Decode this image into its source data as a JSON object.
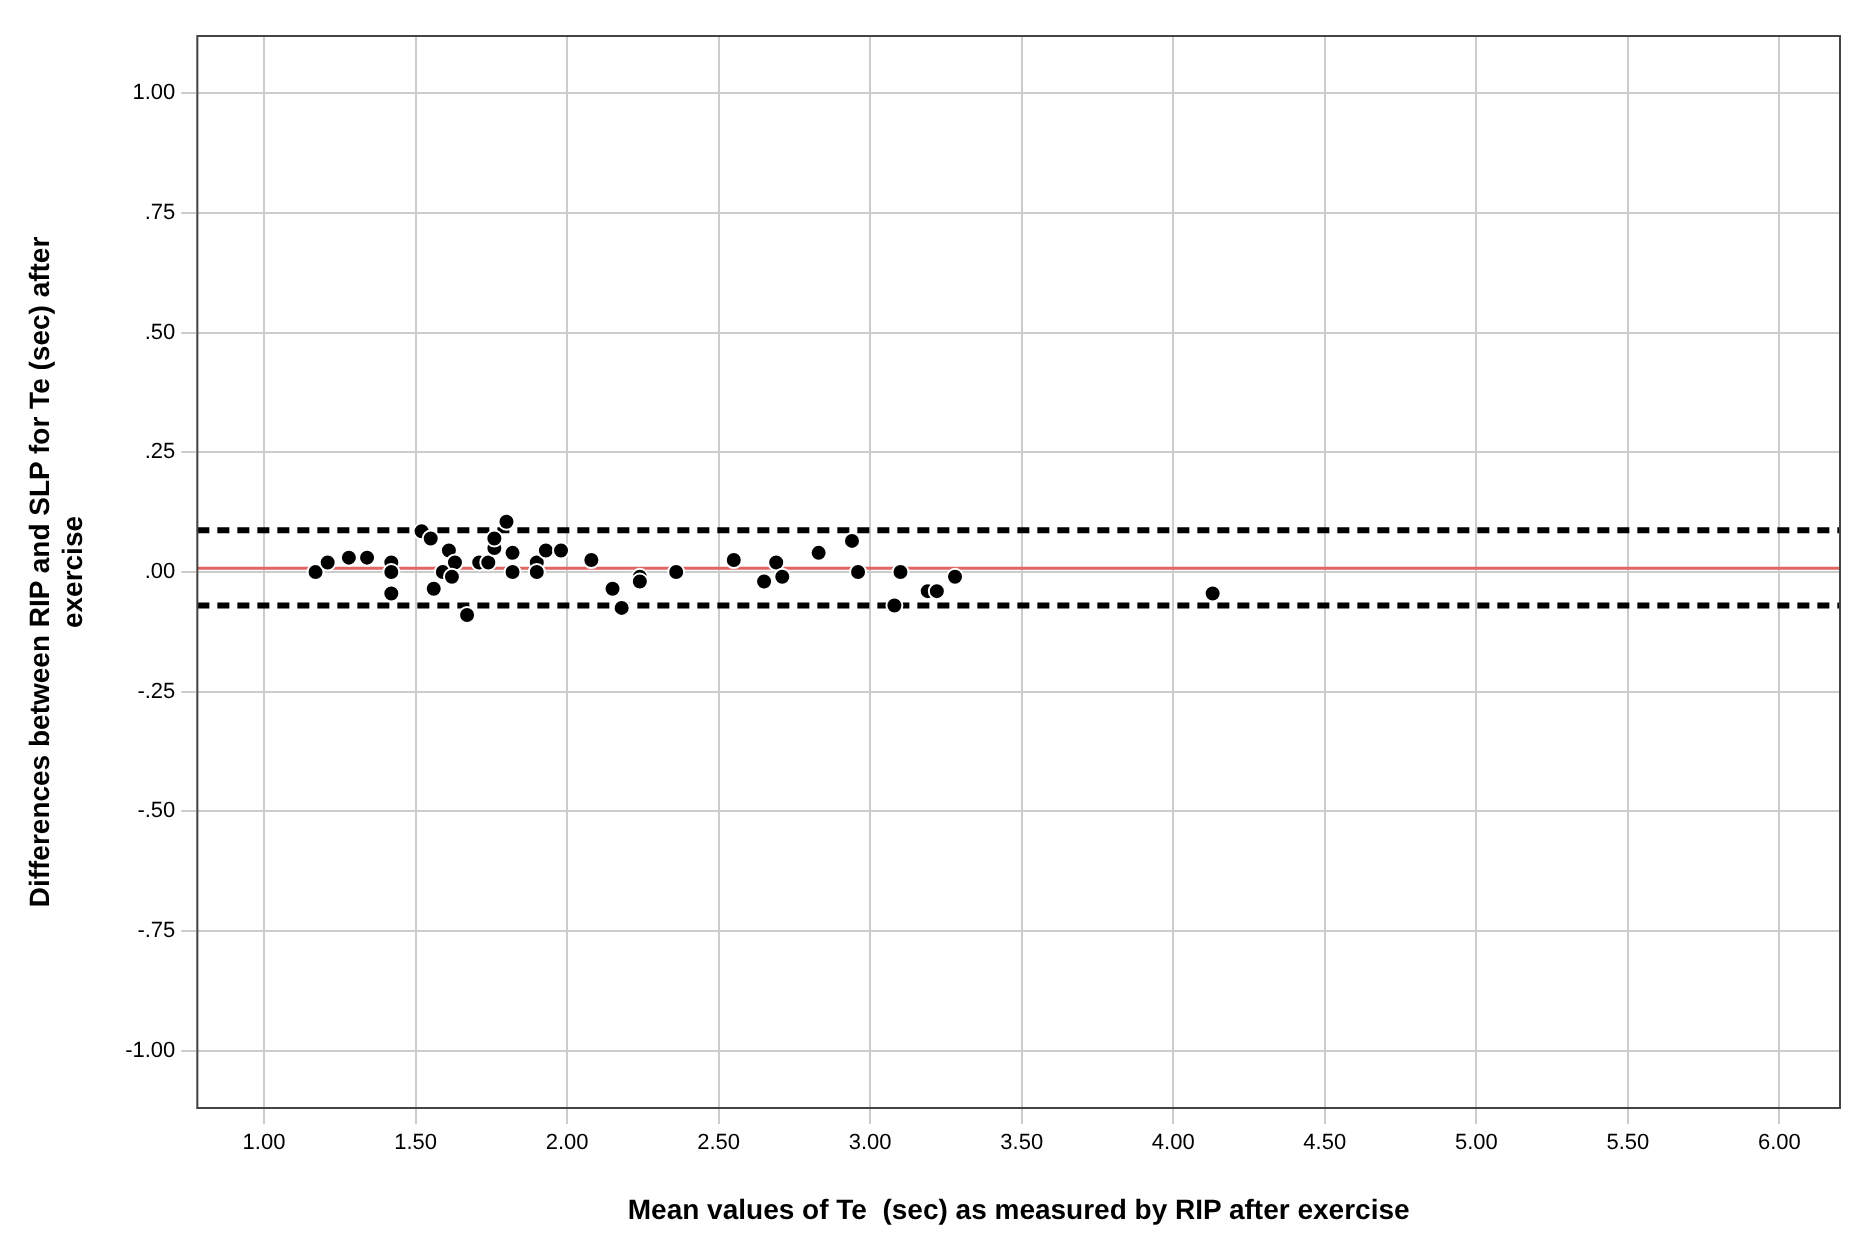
{
  "chart_data": {
    "type": "scatter",
    "xlabel": "Mean values of Te  (sec) as measured by RIP after exercise",
    "ylabel": "Differences between RIP and SLP for Te (sec) after exercise",
    "series": [
      {
        "color": "#000000",
        "x": [
          1.17,
          1.21,
          1.28,
          1.34,
          1.42,
          1.42,
          1.42,
          1.52,
          1.55,
          1.61,
          1.59,
          1.56,
          1.63,
          1.62,
          1.67,
          1.71,
          1.74,
          1.76,
          1.76,
          1.8,
          1.82,
          1.82,
          1.9,
          1.9,
          1.93,
          1.98,
          2.08,
          2.15,
          2.18,
          2.24,
          2.24,
          2.36,
          2.55,
          2.65,
          2.69,
          2.71,
          2.83,
          2.94,
          2.96,
          3.08,
          3.1,
          3.19,
          3.22,
          3.28,
          4.13
        ],
        "values": [
          0.0,
          0.02,
          0.03,
          0.03,
          0.02,
          0.0,
          -0.045,
          0.085,
          0.07,
          0.045,
          0.0,
          -0.035,
          0.02,
          -0.01,
          -0.09,
          0.02,
          0.02,
          0.05,
          0.07,
          0.105,
          0.04,
          0.0,
          0.02,
          0.0,
          0.045,
          0.045,
          0.025,
          -0.035,
          -0.075,
          -0.01,
          -0.02,
          0.0,
          0.025,
          -0.02,
          0.02,
          -0.01,
          0.04,
          0.065,
          0.0,
          -0.07,
          0.0,
          -0.04,
          -0.04,
          -0.01,
          -0.045
        ]
      }
    ],
    "xlim": [
      0.78,
      6.2
    ],
    "xticks": [
      {
        "value": 1,
        "label": "1.00"
      },
      {
        "value": 1.5,
        "label": "1.50"
      },
      {
        "value": 2,
        "label": "2.00"
      },
      {
        "value": 2.5,
        "label": "2.50"
      },
      {
        "value": 3,
        "label": "3.00"
      },
      {
        "value": 3.5,
        "label": "3.50"
      },
      {
        "value": 4,
        "label": "4.00"
      },
      {
        "value": 4.5,
        "label": "4.50"
      },
      {
        "value": 5,
        "label": "5.00"
      },
      {
        "value": 5.5,
        "label": "5.50"
      },
      {
        "value": 6,
        "label": "6.00"
      }
    ],
    "ylim": [
      -1.12,
      1.12
    ],
    "yticks": [
      {
        "value": -1,
        "label": "-1.00"
      },
      {
        "value": -0.75,
        "label": "-.75"
      },
      {
        "value": -0.5,
        "label": "-.50"
      },
      {
        "value": -0.25,
        "label": "-.25"
      },
      {
        "value": 0,
        "label": ".00"
      },
      {
        "value": 0.25,
        "label": ".25"
      },
      {
        "value": 0.5,
        "label": ".50"
      },
      {
        "value": 0.75,
        "label": ".75"
      },
      {
        "value": 1,
        "label": "1.00"
      }
    ],
    "ref_lines": [
      {
        "axis": "y",
        "value": 0.087,
        "color": "#000000",
        "line_style": "dashed"
      },
      {
        "axis": "y",
        "value": -0.07,
        "color": "#000000",
        "line_style": "dashed"
      },
      {
        "axis": "y",
        "value": 0.008,
        "color": "#e06666",
        "line_style": "solid"
      }
    ],
    "grid": true,
    "legend": false,
    "marker": "circle"
  }
}
